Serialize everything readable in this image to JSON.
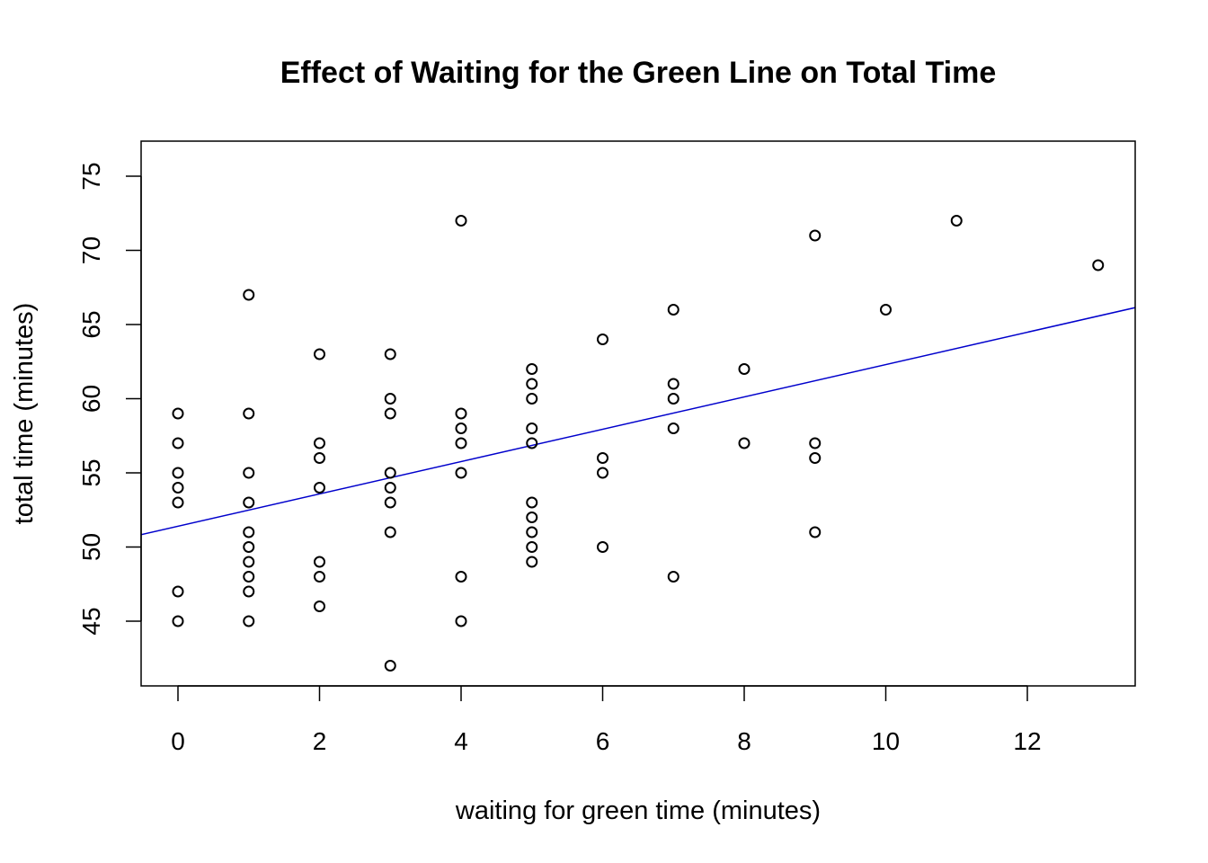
{
  "chart_data": {
    "type": "scatter",
    "title": "Effect of Waiting for the Green Line on Total Time",
    "xlabel": "waiting for green  time (minutes)",
    "ylabel": "total time (minutes)",
    "xlim": [
      -0.5,
      13.5
    ],
    "ylim": [
      40,
      77
    ],
    "x_ticks": [
      0,
      2,
      4,
      6,
      8,
      10,
      12
    ],
    "y_ticks": [
      45,
      50,
      55,
      60,
      65,
      70,
      75
    ],
    "grid": false,
    "points": [
      {
        "x": 0,
        "y": 59
      },
      {
        "x": 0,
        "y": 57
      },
      {
        "x": 0,
        "y": 55
      },
      {
        "x": 0,
        "y": 54
      },
      {
        "x": 0,
        "y": 53
      },
      {
        "x": 0,
        "y": 47
      },
      {
        "x": 0,
        "y": 45
      },
      {
        "x": 1,
        "y": 67
      },
      {
        "x": 1,
        "y": 59
      },
      {
        "x": 1,
        "y": 55
      },
      {
        "x": 1,
        "y": 53
      },
      {
        "x": 1,
        "y": 51
      },
      {
        "x": 1,
        "y": 50
      },
      {
        "x": 1,
        "y": 49
      },
      {
        "x": 1,
        "y": 48
      },
      {
        "x": 1,
        "y": 47
      },
      {
        "x": 1,
        "y": 45
      },
      {
        "x": 2,
        "y": 63
      },
      {
        "x": 2,
        "y": 57
      },
      {
        "x": 2,
        "y": 56
      },
      {
        "x": 2,
        "y": 54
      },
      {
        "x": 2,
        "y": 49
      },
      {
        "x": 2,
        "y": 48
      },
      {
        "x": 2,
        "y": 46
      },
      {
        "x": 3,
        "y": 63
      },
      {
        "x": 3,
        "y": 60
      },
      {
        "x": 3,
        "y": 59
      },
      {
        "x": 3,
        "y": 55
      },
      {
        "x": 3,
        "y": 54
      },
      {
        "x": 3,
        "y": 53
      },
      {
        "x": 3,
        "y": 51
      },
      {
        "x": 3,
        "y": 42
      },
      {
        "x": 4,
        "y": 72
      },
      {
        "x": 4,
        "y": 59
      },
      {
        "x": 4,
        "y": 58
      },
      {
        "x": 4,
        "y": 57
      },
      {
        "x": 4,
        "y": 55
      },
      {
        "x": 4,
        "y": 48
      },
      {
        "x": 4,
        "y": 45
      },
      {
        "x": 5,
        "y": 62
      },
      {
        "x": 5,
        "y": 61
      },
      {
        "x": 5,
        "y": 60
      },
      {
        "x": 5,
        "y": 58
      },
      {
        "x": 5,
        "y": 57
      },
      {
        "x": 5,
        "y": 53
      },
      {
        "x": 5,
        "y": 52
      },
      {
        "x": 5,
        "y": 51
      },
      {
        "x": 5,
        "y": 50
      },
      {
        "x": 5,
        "y": 49
      },
      {
        "x": 6,
        "y": 64
      },
      {
        "x": 6,
        "y": 56
      },
      {
        "x": 6,
        "y": 55
      },
      {
        "x": 6,
        "y": 50
      },
      {
        "x": 7,
        "y": 66
      },
      {
        "x": 7,
        "y": 61
      },
      {
        "x": 7,
        "y": 60
      },
      {
        "x": 7,
        "y": 58
      },
      {
        "x": 7,
        "y": 48
      },
      {
        "x": 8,
        "y": 62
      },
      {
        "x": 8,
        "y": 57
      },
      {
        "x": 9,
        "y": 71
      },
      {
        "x": 9,
        "y": 57
      },
      {
        "x": 9,
        "y": 56
      },
      {
        "x": 9,
        "y": 51
      },
      {
        "x": 10,
        "y": 66
      },
      {
        "x": 11,
        "y": 72
      },
      {
        "x": 13,
        "y": 69
      }
    ],
    "regression_line": {
      "intercept": 51.4,
      "slope": 1.09,
      "color": "#0000cc"
    },
    "point_color": "#000000"
  }
}
